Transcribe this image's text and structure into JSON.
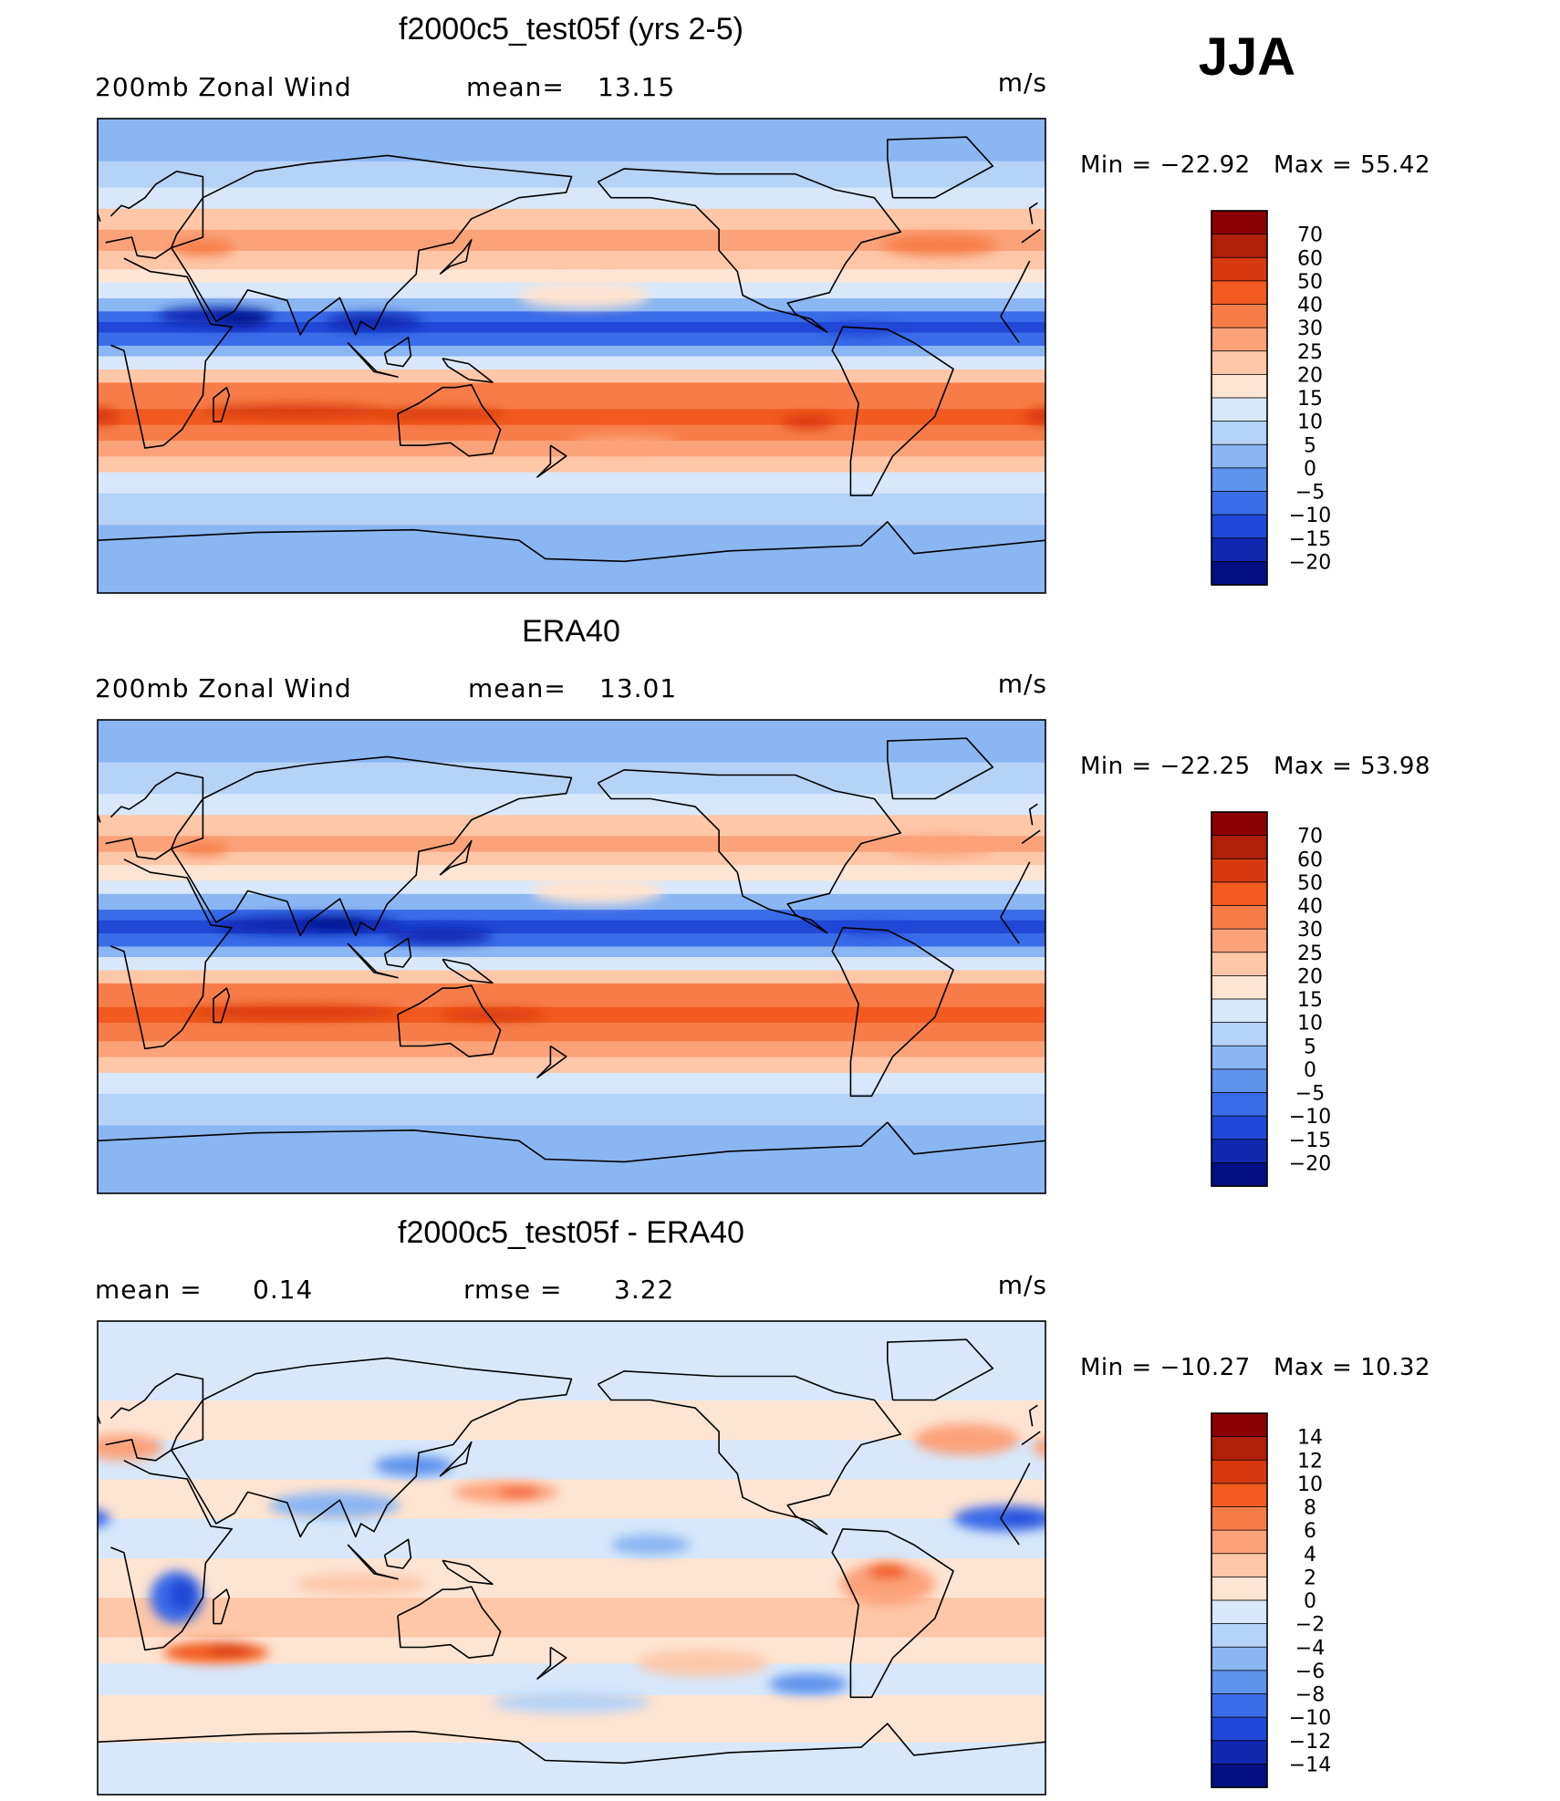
{
  "season": "JJA",
  "chart_data": [
    {
      "type": "heatmap",
      "name": "model",
      "title": "f2000c5_test05f (yrs 2-5)",
      "left_label": "200mb  Zonal  Wind",
      "stat_label": "mean=",
      "stat_value": "13.15",
      "units": "m/s",
      "min_text": "Min  =  −22.92",
      "max_text": "Max  =    55.42",
      "colorbar_labels": [
        "70",
        "60",
        "50",
        "40",
        "30",
        "25",
        "20",
        "15",
        "10",
        "5",
        "0",
        "−5",
        "−10",
        "−15",
        "−20"
      ],
      "colorbar_colors": [
        "#8b0000",
        "#b0200a",
        "#d6380f",
        "#f25a1f",
        "#f77d48",
        "#fba27a",
        "#fdc7a8",
        "#fee4d2",
        "#d8e8fa",
        "#b5d2f7",
        "#8ab6f2",
        "#5f93ec",
        "#3a6be8",
        "#2147d6",
        "#1027b0",
        "#030f82"
      ],
      "bands": [
        [
          -90,
          -64,
          "#8ab6f2"
        ],
        [
          -64,
          -52,
          "#b5d2f7"
        ],
        [
          -52,
          -44,
          "#d8e8fa"
        ],
        [
          -44,
          -38,
          "#fdc7a8"
        ],
        [
          -38,
          -32,
          "#fba27a"
        ],
        [
          -32,
          -26,
          "#f77d48"
        ],
        [
          -26,
          -20,
          "#f25a1f"
        ],
        [
          -20,
          -10,
          "#f77d48"
        ],
        [
          -10,
          -5,
          "#fdc7a8"
        ],
        [
          -5,
          0,
          "#d8e8fa"
        ],
        [
          0,
          4,
          "#8ab6f2"
        ],
        [
          4,
          9,
          "#3a6be8"
        ],
        [
          9,
          13,
          "#2147d6"
        ],
        [
          13,
          17,
          "#3a6be8"
        ],
        [
          17,
          22,
          "#8ab6f2"
        ],
        [
          22,
          28,
          "#d8e8fa"
        ],
        [
          28,
          33,
          "#fee4d2"
        ],
        [
          33,
          40,
          "#fdc7a8"
        ],
        [
          40,
          48,
          "#fba27a"
        ],
        [
          48,
          56,
          "#fdc7a8"
        ],
        [
          56,
          64,
          "#d8e8fa"
        ],
        [
          64,
          74,
          "#b5d2f7"
        ],
        [
          74,
          90,
          "#8ab6f2"
        ]
      ],
      "blobs": [
        [
          45,
          15,
          22,
          3.5,
          "#1027b0"
        ],
        [
          55,
          14,
          10,
          2.5,
          "#030f82"
        ],
        [
          105,
          13,
          18,
          3,
          "#1027b0"
        ],
        [
          290,
          10,
          14,
          2.5,
          "#2147d6"
        ],
        [
          0,
          -23,
          8,
          3,
          "#d6380f"
        ],
        [
          75,
          -21,
          35,
          2.5,
          "#d6380f"
        ],
        [
          130,
          -22,
          25,
          2,
          "#d6380f"
        ],
        [
          270,
          -25,
          10,
          2.5,
          "#d6380f"
        ],
        [
          40,
          41,
          12,
          3,
          "#f77d48"
        ],
        [
          185,
          23,
          25,
          5,
          "#fee4d2"
        ],
        [
          320,
          42,
          22,
          4,
          "#f77d48"
        ],
        [
          200,
          -33,
          20,
          3,
          "#fba27a"
        ]
      ]
    },
    {
      "type": "heatmap",
      "name": "obs",
      "title": "ERA40",
      "left_label": "200mb  Zonal  Wind",
      "stat_label": "mean=",
      "stat_value": "13.01",
      "units": "m/s",
      "min_text": "Min  =  −22.25",
      "max_text": "Max  =    53.98",
      "colorbar_labels": [
        "70",
        "60",
        "50",
        "40",
        "30",
        "25",
        "20",
        "15",
        "10",
        "5",
        "0",
        "−5",
        "−10",
        "−15",
        "−20"
      ],
      "colorbar_colors": [
        "#8b0000",
        "#b0200a",
        "#d6380f",
        "#f25a1f",
        "#f77d48",
        "#fba27a",
        "#fdc7a8",
        "#fee4d2",
        "#d8e8fa",
        "#b5d2f7",
        "#8ab6f2",
        "#5f93ec",
        "#3a6be8",
        "#2147d6",
        "#1027b0",
        "#030f82"
      ],
      "bands": [
        [
          -90,
          -64,
          "#8ab6f2"
        ],
        [
          -64,
          -52,
          "#b5d2f7"
        ],
        [
          -52,
          -44,
          "#d8e8fa"
        ],
        [
          -44,
          -38,
          "#fdc7a8"
        ],
        [
          -38,
          -32,
          "#fba27a"
        ],
        [
          -32,
          -25,
          "#f77d48"
        ],
        [
          -25,
          -19,
          "#f25a1f"
        ],
        [
          -19,
          -10,
          "#f77d48"
        ],
        [
          -10,
          -5,
          "#fdc7a8"
        ],
        [
          -5,
          0,
          "#d8e8fa"
        ],
        [
          0,
          4,
          "#8ab6f2"
        ],
        [
          4,
          9,
          "#3a6be8"
        ],
        [
          9,
          14,
          "#2147d6"
        ],
        [
          14,
          18,
          "#3a6be8"
        ],
        [
          18,
          24,
          "#8ab6f2"
        ],
        [
          24,
          29,
          "#d8e8fa"
        ],
        [
          29,
          35,
          "#fee4d2"
        ],
        [
          35,
          40,
          "#fdc7a8"
        ],
        [
          40,
          46,
          "#fba27a"
        ],
        [
          46,
          54,
          "#fdc7a8"
        ],
        [
          54,
          62,
          "#d8e8fa"
        ],
        [
          62,
          74,
          "#b5d2f7"
        ],
        [
          74,
          90,
          "#8ab6f2"
        ]
      ],
      "blobs": [
        [
          80,
          12,
          35,
          3.5,
          "#1027b0"
        ],
        [
          90,
          13,
          12,
          2,
          "#030f82"
        ],
        [
          130,
          8,
          20,
          3,
          "#1027b0"
        ],
        [
          295,
          10,
          12,
          2,
          "#2147d6"
        ],
        [
          75,
          -21,
          40,
          2.5,
          "#d6380f"
        ],
        [
          150,
          -22,
          20,
          2,
          "#d6380f"
        ],
        [
          40,
          41,
          10,
          2.5,
          "#f77d48"
        ],
        [
          190,
          25,
          25,
          5,
          "#fee4d2"
        ],
        [
          320,
          42,
          20,
          4,
          "#fba27a"
        ]
      ]
    },
    {
      "type": "heatmap",
      "name": "diff",
      "title": "f2000c5_test05f - ERA40",
      "left_label": "mean  =",
      "left_value": "0.14",
      "stat_label": "rmse  =",
      "stat_value": "3.22",
      "units": "m/s",
      "min_text": "Min  =  −10.27",
      "max_text": "Max  =    10.32",
      "colorbar_labels": [
        "14",
        "12",
        "10",
        "8",
        "6",
        "4",
        "2",
        "0",
        "−2",
        "−4",
        "−6",
        "−8",
        "−10",
        "−12",
        "−14"
      ],
      "colorbar_colors": [
        "#8b0000",
        "#b0200a",
        "#d6380f",
        "#f25a1f",
        "#f77d48",
        "#fba27a",
        "#fdc7a8",
        "#fee4d2",
        "#d8e8fa",
        "#b5d2f7",
        "#8ab6f2",
        "#5f93ec",
        "#3a6be8",
        "#2147d6",
        "#1027b0",
        "#030f82"
      ],
      "bands": [
        [
          -90,
          -70,
          "#d8e8fa"
        ],
        [
          -70,
          -62,
          "#fee4d2"
        ],
        [
          -62,
          -52,
          "#fee4d2"
        ],
        [
          -52,
          -40,
          "#d8e8fa"
        ],
        [
          -40,
          -30,
          "#fee4d2"
        ],
        [
          -30,
          -15,
          "#fdc7a8"
        ],
        [
          -15,
          0,
          "#fee4d2"
        ],
        [
          0,
          15,
          "#d8e8fa"
        ],
        [
          15,
          30,
          "#fee4d2"
        ],
        [
          30,
          45,
          "#d8e8fa"
        ],
        [
          45,
          60,
          "#fee4d2"
        ],
        [
          60,
          90,
          "#d8e8fa"
        ]
      ],
      "blobs": [
        [
          30,
          -15,
          10,
          10,
          "#3a6be8"
        ],
        [
          32,
          -14,
          5,
          6,
          "#2147d6"
        ],
        [
          45,
          -36,
          20,
          4,
          "#f25a1f"
        ],
        [
          50,
          -35,
          8,
          2,
          "#d6380f"
        ],
        [
          300,
          -10,
          18,
          8,
          "#fba27a"
        ],
        [
          300,
          -5,
          8,
          3,
          "#f25a1f"
        ],
        [
          155,
          25,
          20,
          4,
          "#fba27a"
        ],
        [
          160,
          25,
          8,
          2,
          "#f25a1f"
        ],
        [
          345,
          15,
          20,
          5,
          "#3a6be8"
        ],
        [
          350,
          15,
          8,
          2,
          "#2147d6"
        ],
        [
          120,
          35,
          15,
          4,
          "#5f93ec"
        ],
        [
          90,
          20,
          25,
          5,
          "#8ab6f2"
        ],
        [
          10,
          42,
          15,
          5,
          "#fba27a"
        ],
        [
          330,
          45,
          20,
          6,
          "#fba27a"
        ],
        [
          230,
          -40,
          25,
          5,
          "#fdc7a8"
        ],
        [
          180,
          -55,
          30,
          4,
          "#b5d2f7"
        ],
        [
          270,
          -48,
          15,
          4,
          "#5f93ec"
        ],
        [
          210,
          5,
          15,
          4,
          "#8ab6f2"
        ],
        [
          100,
          -10,
          25,
          4,
          "#fdc7a8"
        ]
      ]
    }
  ]
}
